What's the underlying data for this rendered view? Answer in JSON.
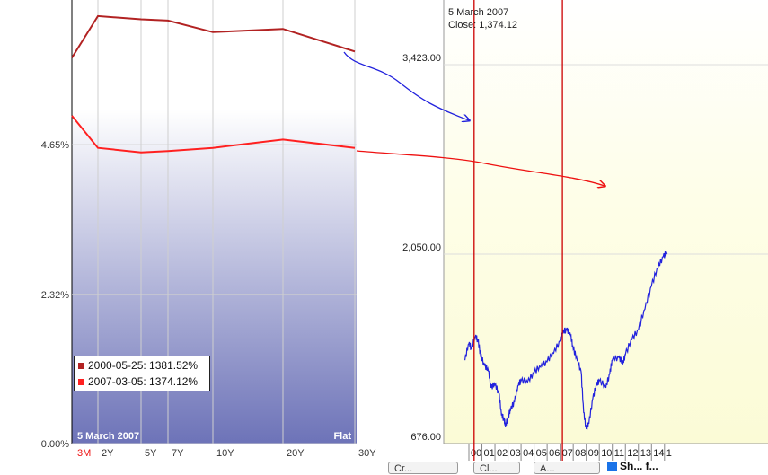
{
  "chart_data": [
    {
      "type": "line",
      "title": "",
      "xlabel": "",
      "ylabel": "",
      "x_tick_labels": [
        "3M",
        "2Y",
        "5Y",
        "7Y",
        "10Y",
        "20Y",
        "30Y"
      ],
      "active_tick": "3M",
      "y_tick_labels": [
        "4.65%",
        "2.32%",
        "0.00%"
      ],
      "ylim": [
        0,
        6.9
      ],
      "grid": true,
      "date_label": "5  March 2007",
      "curve_label": "Flat",
      "series": [
        {
          "name": "2000-05-25: 1381.52%",
          "color": "#b22222",
          "values": [
            6.0,
            6.65,
            6.6,
            6.58,
            6.4,
            6.45,
            6.1
          ]
        },
        {
          "name": "2007-03-05: 1374.12%",
          "color": "#ff2020",
          "values": [
            5.1,
            4.6,
            4.53,
            4.55,
            4.6,
            4.73,
            4.6
          ]
        }
      ],
      "legend": "bottom-left"
    },
    {
      "type": "line",
      "title": "",
      "xlabel": "",
      "ylabel": "",
      "y_tick_labels": [
        "3,423.00",
        "2,050.00",
        "676.00"
      ],
      "x_tick_labels": [
        "00",
        "01",
        "02",
        "03",
        "04",
        "05",
        "06",
        "07",
        "08",
        "09",
        "10",
        "11",
        "12",
        "13",
        "14",
        "1"
      ],
      "tooltip_date": "5  March 2007",
      "tooltip_value": "Close: 1,374.12",
      "marker_labels": [
        "2000-05-25",
        "2007-03-05"
      ],
      "series": [
        {
          "name": "",
          "color": "#2222dd",
          "x": [
            1999.7,
            2000.0,
            2000.2,
            2000.5,
            2000.7,
            2000.9,
            2001.2,
            2001.5,
            2001.7,
            2002.0,
            2002.3,
            2002.5,
            2002.7,
            2002.8,
            2003.0,
            2003.2,
            2003.5,
            2003.8,
            2004.0,
            2004.5,
            2005.0,
            2005.5,
            2006.0,
            2006.5,
            2007.0,
            2007.2,
            2007.5,
            2007.8,
            2008.0,
            2008.3,
            2008.6,
            2008.8,
            2009.0,
            2009.2,
            2009.5,
            2009.8,
            2010.0,
            2010.5,
            2010.8,
            2011.0,
            2011.5,
            2011.8,
            2012.0,
            2012.5,
            2013.0,
            2013.5,
            2014.0,
            2014.5,
            2014.9,
            2015.2
          ],
          "values": [
            1280,
            1400,
            1360,
            1450,
            1420,
            1310,
            1240,
            1200,
            1080,
            1100,
            1040,
            880,
            850,
            800,
            860,
            920,
            980,
            1100,
            1130,
            1120,
            1190,
            1230,
            1270,
            1330,
            1420,
            1480,
            1500,
            1460,
            1360,
            1280,
            1200,
            900,
            780,
            820,
            1000,
            1100,
            1130,
            1080,
            1180,
            1280,
            1300,
            1250,
            1320,
            1430,
            1500,
            1650,
            1820,
            1950,
            2030,
            2050
          ]
        }
      ]
    }
  ],
  "buttons": {
    "a": "Cr...",
    "b": "Cl...",
    "c": "A..."
  },
  "checkbox_label": "Sh... f..."
}
